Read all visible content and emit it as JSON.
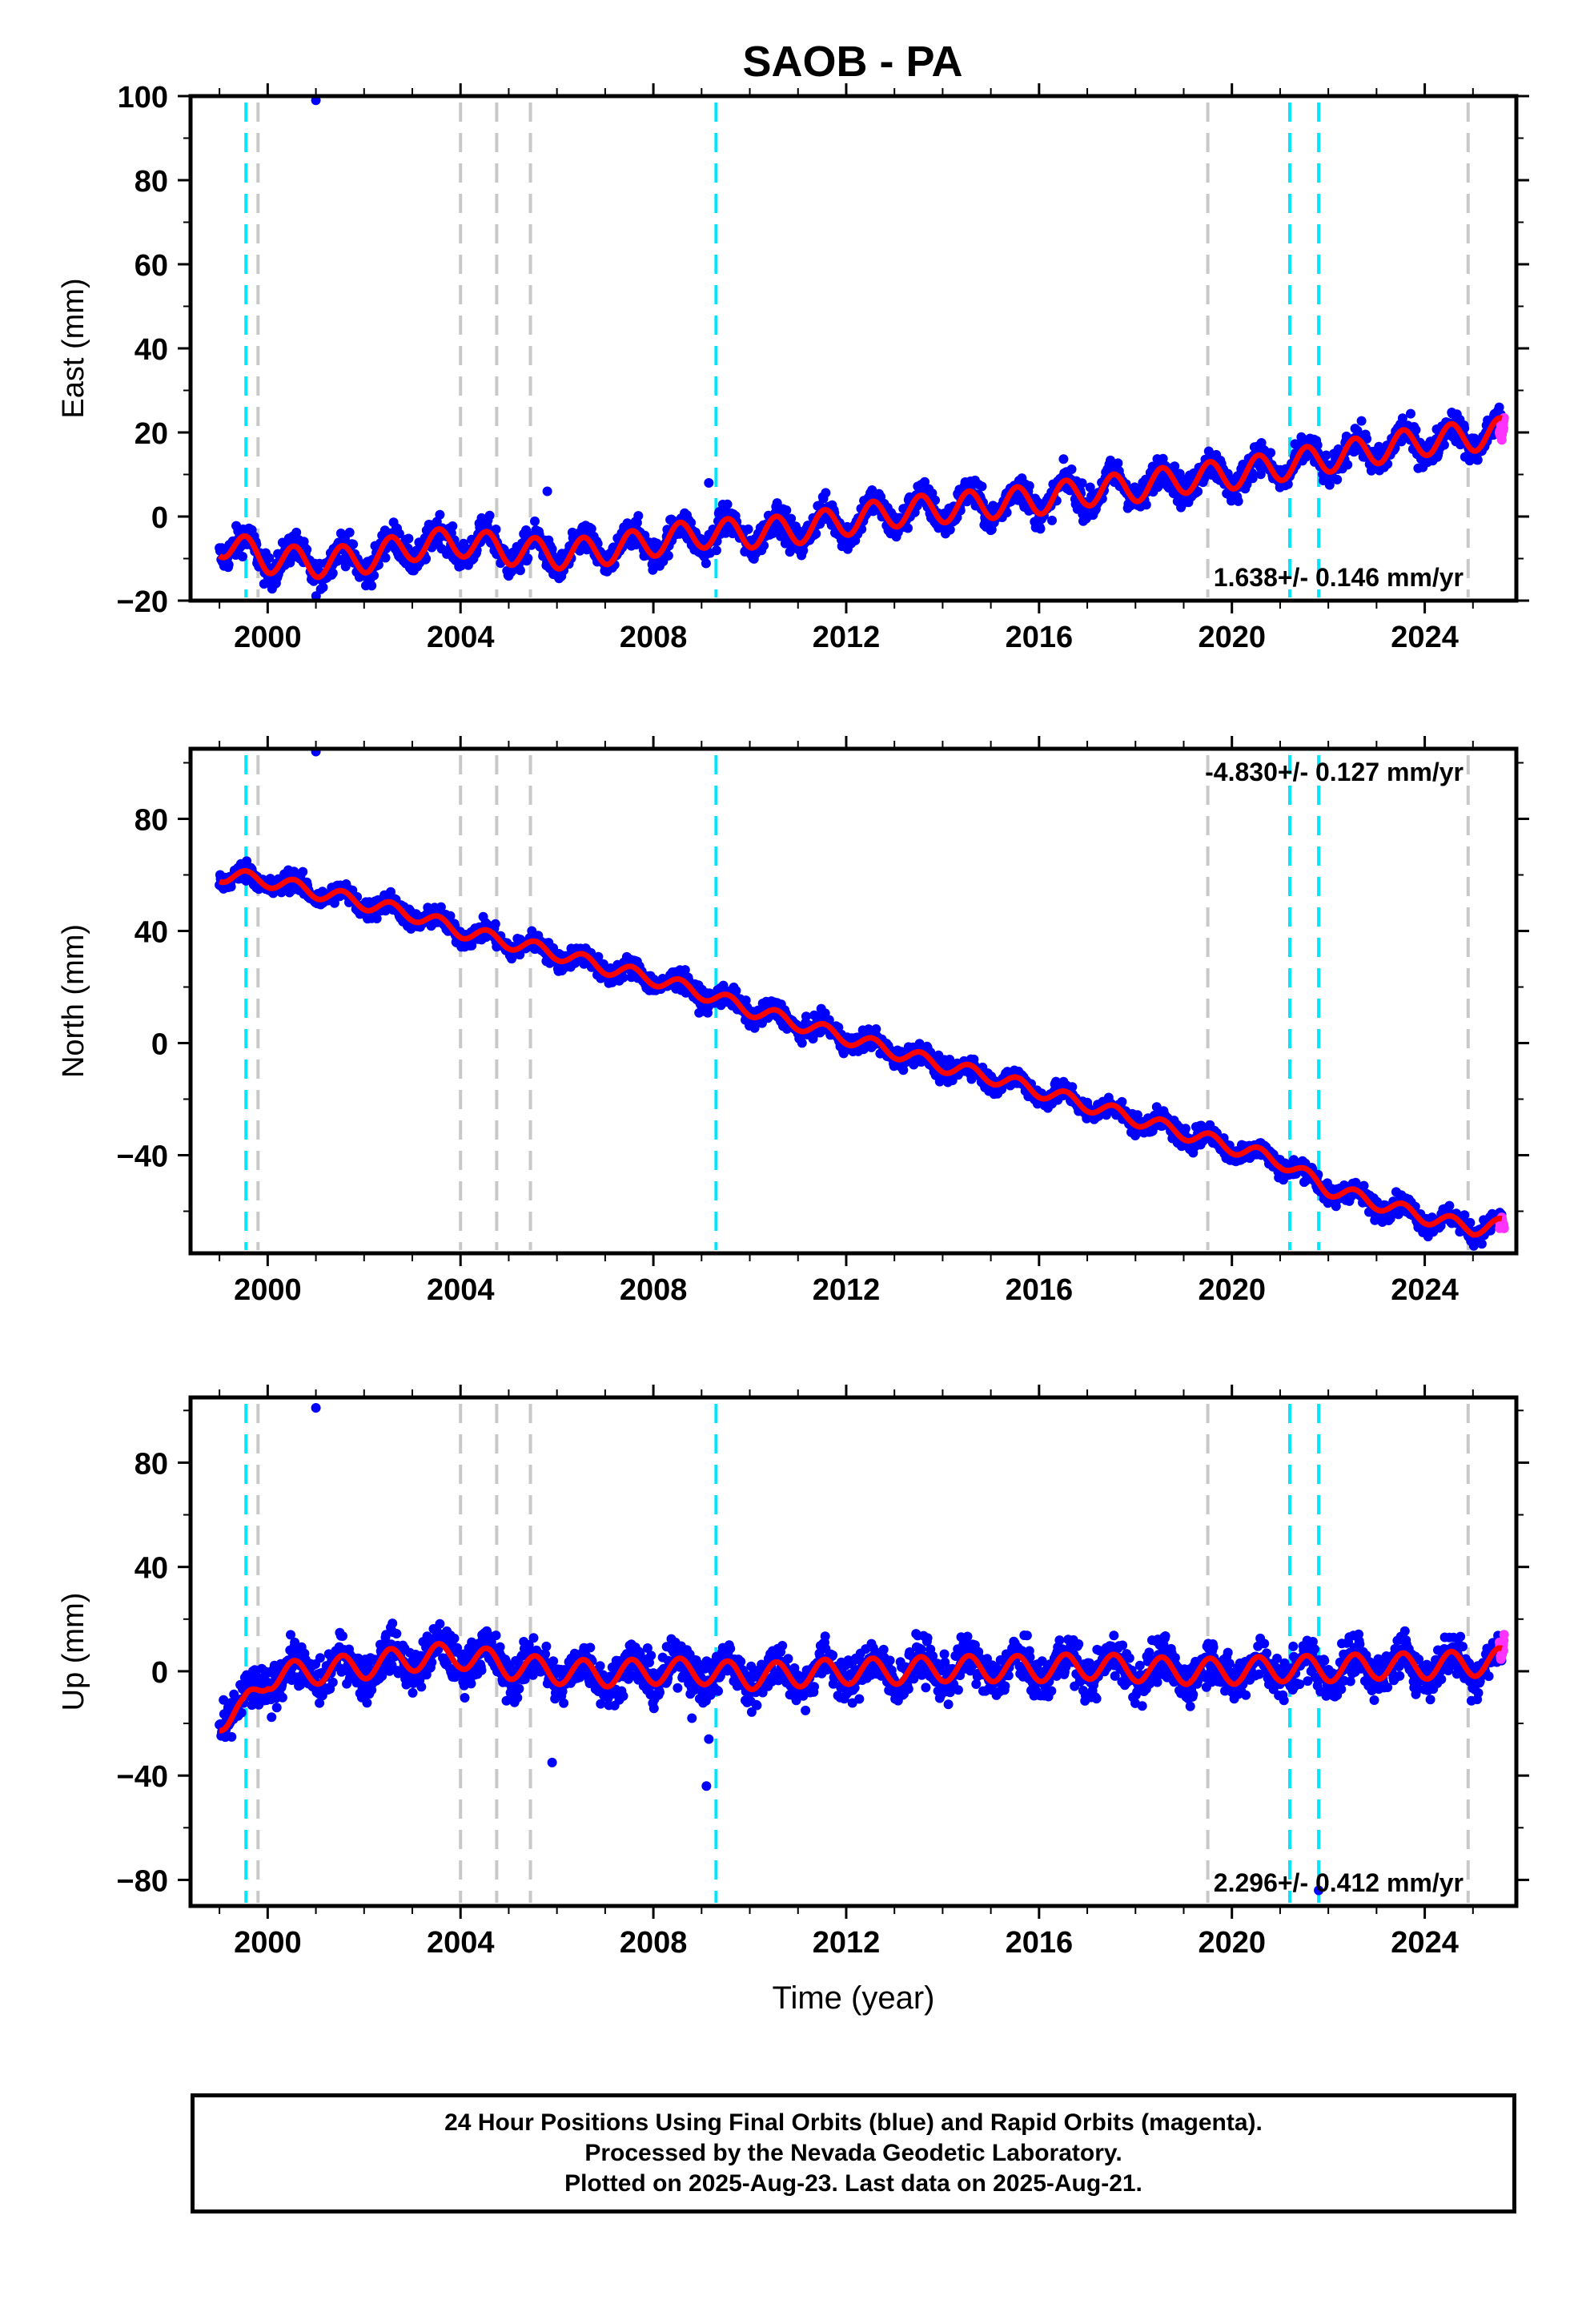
{
  "title": "SAOB - PA",
  "footer": {
    "lines": [
      "24 Hour Positions Using Final Orbits (blue) and Rapid Orbits (magenta).",
      "Processed by the Nevada Geodetic Laboratory.",
      "Plotted on 2025-Aug-23. Last data on 2025-Aug-21."
    ]
  },
  "colors": {
    "final": "#0000ff",
    "rapid": "#ff33ff",
    "model": "#ff0000",
    "equipment_change": "#c8c8c8",
    "earthquake": "#00e5ff"
  },
  "chart_data": [
    {
      "type": "scatter",
      "ylabel": "East (mm)",
      "xlabel": "",
      "xlim": [
        1998.4,
        2025.9
      ],
      "ylim": [
        -20,
        100
      ],
      "xticks": [
        2000,
        2004,
        2008,
        2012,
        2016,
        2020,
        2024
      ],
      "yticks": [
        -20,
        0,
        20,
        40,
        60,
        80,
        100
      ],
      "rate_label": "1.638+/- 0.146 mm/yr",
      "rate_position": "bottom-right",
      "model": {
        "start": [
          1999.0,
          -6
        ],
        "end": [
          2025.6,
          20
        ],
        "annual_amplitude": 3.5
      },
      "outliers": [
        [
          2001.0,
          99
        ],
        [
          2005.8,
          6
        ],
        [
          2009.15,
          8
        ]
      ],
      "series": [
        {
          "values": [
            [
              1999.0,
              -6
            ],
            [
              2000.0,
              -10
            ],
            [
              2001.0,
              -11
            ],
            [
              2002.0,
              -10
            ],
            [
              2003.0,
              -7
            ],
            [
              2004.0,
              -6
            ],
            [
              2005.0,
              -8
            ],
            [
              2006.0,
              -9
            ],
            [
              2007.0,
              -8
            ],
            [
              2008.0,
              -6
            ],
            [
              2009.0,
              -4
            ],
            [
              2010.0,
              -4
            ],
            [
              2011.0,
              -3
            ],
            [
              2012.0,
              -1
            ],
            [
              2013.0,
              1
            ],
            [
              2014.0,
              2
            ],
            [
              2015.0,
              3
            ],
            [
              2016.0,
              4
            ],
            [
              2017.0,
              6
            ],
            [
              2018.0,
              7
            ],
            [
              2019.0,
              9
            ],
            [
              2020.0,
              10
            ],
            [
              2021.0,
              12
            ],
            [
              2022.0,
              14
            ],
            [
              2023.0,
              16
            ],
            [
              2024.0,
              18
            ],
            [
              2025.0,
              19
            ],
            [
              2025.6,
              20
            ]
          ]
        },
        {
          "values": [
            [
              2025.55,
              21
            ],
            [
              2025.6,
              19
            ],
            [
              2025.65,
              23
            ]
          ]
        }
      ]
    },
    {
      "type": "scatter",
      "ylabel": "North (mm)",
      "xlabel": "",
      "xlim": [
        1998.4,
        2025.9
      ],
      "ylim": [
        -75,
        105
      ],
      "xticks": [
        2000,
        2004,
        2008,
        2012,
        2016,
        2020,
        2024
      ],
      "yticks": [
        -40,
        0,
        40,
        80
      ],
      "rate_label": "-4.830+/- 0.127 mm/yr",
      "rate_position": "top-right",
      "model": {
        "start": [
          1999.0,
          60
        ],
        "end": [
          2025.6,
          -66
        ],
        "annual_amplitude": 2.5
      },
      "outliers": [
        [
          2001.0,
          104
        ]
      ],
      "series": [
        {
          "values": [
            [
              1999.0,
              60
            ],
            [
              2000.0,
              58
            ],
            [
              2001.0,
              54
            ],
            [
              2002.0,
              50
            ],
            [
              2003.0,
              46
            ],
            [
              2004.0,
              40
            ],
            [
              2005.0,
              36
            ],
            [
              2006.0,
              32
            ],
            [
              2007.0,
              27
            ],
            [
              2008.0,
              23
            ],
            [
              2009.0,
              18
            ],
            [
              2010.0,
              12
            ],
            [
              2011.0,
              7
            ],
            [
              2012.0,
              2
            ],
            [
              2013.0,
              -3
            ],
            [
              2014.0,
              -8
            ],
            [
              2015.0,
              -12
            ],
            [
              2016.0,
              -17
            ],
            [
              2017.0,
              -22
            ],
            [
              2018.0,
              -27
            ],
            [
              2019.0,
              -32
            ],
            [
              2020.0,
              -37
            ],
            [
              2021.0,
              -42
            ],
            [
              2022.0,
              -52
            ],
            [
              2023.0,
              -57
            ],
            [
              2024.0,
              -62
            ],
            [
              2025.0,
              -66
            ],
            [
              2025.6,
              -65
            ]
          ]
        },
        {
          "values": [
            [
              2025.55,
              -65
            ],
            [
              2025.6,
              -63
            ],
            [
              2025.65,
              -66
            ]
          ]
        }
      ]
    },
    {
      "type": "scatter",
      "ylabel": "Up (mm)",
      "xlabel": "Time (year)",
      "xlim": [
        1998.4,
        2025.9
      ],
      "ylim": [
        -90,
        105
      ],
      "xticks": [
        2000,
        2004,
        2008,
        2012,
        2016,
        2020,
        2024
      ],
      "yticks": [
        -80,
        -40,
        0,
        40,
        80
      ],
      "rate_label": "2.296+/- 0.412 mm/yr",
      "rate_position": "bottom-right",
      "model": {
        "start": [
          1999.0,
          -18
        ],
        "end": [
          2025.6,
          4
        ],
        "annual_amplitude": 5
      },
      "outliers": [
        [
          2001.0,
          101
        ],
        [
          2005.9,
          -35
        ],
        [
          2009.1,
          -44
        ],
        [
          2009.15,
          -26
        ],
        [
          2008.8,
          -18
        ],
        [
          2021.8,
          -84
        ]
      ],
      "series": [
        {
          "values": [
            [
              1999.0,
              -18
            ],
            [
              1999.5,
              -15
            ],
            [
              2000.0,
              -2
            ],
            [
              2001.0,
              0
            ],
            [
              2002.0,
              2
            ],
            [
              2003.0,
              5
            ],
            [
              2004.0,
              6
            ],
            [
              2005.0,
              2
            ],
            [
              2006.0,
              0
            ],
            [
              2007.0,
              -1
            ],
            [
              2008.0,
              0
            ],
            [
              2009.0,
              0
            ],
            [
              2010.0,
              -2
            ],
            [
              2011.0,
              -1
            ],
            [
              2012.0,
              0
            ],
            [
              2013.0,
              0
            ],
            [
              2014.0,
              1
            ],
            [
              2015.0,
              1
            ],
            [
              2016.0,
              1
            ],
            [
              2017.0,
              2
            ],
            [
              2018.0,
              1
            ],
            [
              2019.0,
              0
            ],
            [
              2020.0,
              0
            ],
            [
              2021.0,
              1
            ],
            [
              2022.0,
              1
            ],
            [
              2023.0,
              2
            ],
            [
              2024.0,
              2
            ],
            [
              2025.0,
              3
            ],
            [
              2025.6,
              4
            ]
          ]
        },
        {
          "values": [
            [
              2025.55,
              10
            ],
            [
              2025.6,
              6
            ],
            [
              2025.65,
              13
            ]
          ]
        }
      ]
    }
  ],
  "event_lines": {
    "equipment_change": [
      1999.8,
      2004.0,
      2004.75,
      2005.45,
      2019.5,
      2024.9
    ],
    "earthquake": [
      1999.55,
      2009.3,
      2021.2,
      2021.8
    ]
  }
}
